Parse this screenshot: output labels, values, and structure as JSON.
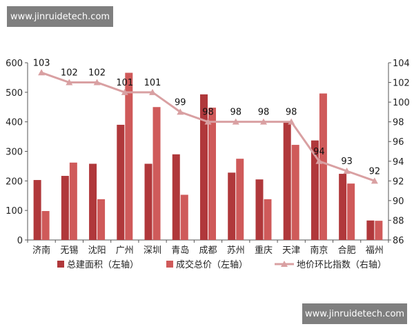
{
  "watermark_top": "www.jinruidetech.com",
  "watermark_bottom": "www.jinruidetech.com",
  "colors": {
    "area": "#b0383b",
    "price": "#cf5a5a",
    "index": "#d9a0a2",
    "axis": "#555555"
  },
  "chart_data": {
    "type": "bar+line",
    "title": "",
    "categories": [
      "济南",
      "无锡",
      "沈阳",
      "广州",
      "深圳",
      "青岛",
      "成都",
      "苏州",
      "重庆",
      "天津",
      "南京",
      "合肥",
      "福州"
    ],
    "series": [
      {
        "name": "总建面积（左轴）",
        "type": "bar",
        "axis": "left",
        "values": [
          203,
          217,
          258,
          390,
          258,
          290,
          493,
          228,
          205,
          398,
          337,
          224,
          66
        ]
      },
      {
        "name": "成交总价（左轴）",
        "type": "bar",
        "axis": "left",
        "values": [
          98,
          262,
          138,
          566,
          450,
          153,
          448,
          275,
          138,
          322,
          496,
          191,
          65
        ]
      },
      {
        "name": "地价环比指数（右轴）",
        "type": "line",
        "axis": "right",
        "values": [
          103,
          102,
          102,
          101,
          101,
          99,
          98,
          98,
          98,
          98,
          94,
          93,
          92
        ]
      }
    ],
    "left_axis": {
      "min": 0,
      "max": 600,
      "ticks": [
        0,
        100,
        200,
        300,
        400,
        500,
        600
      ]
    },
    "right_axis": {
      "min": 86,
      "max": 104,
      "ticks": [
        86,
        88,
        90,
        92,
        94,
        96,
        98,
        100,
        102,
        104
      ]
    },
    "legend_position": "bottom"
  }
}
